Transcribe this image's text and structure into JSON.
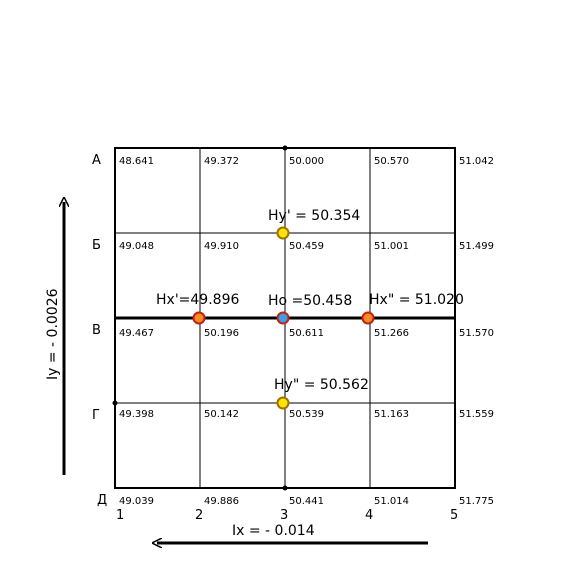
{
  "grid": {
    "row_labels": [
      "А",
      "Б",
      "В",
      "Г",
      "Д"
    ],
    "column_labels": [
      "1",
      "2",
      "3",
      "4",
      "5"
    ],
    "values": [
      [
        "48.641",
        "49.372",
        "50.000",
        "50.570",
        "51.042"
      ],
      [
        "49.048",
        "49.910",
        "50.459",
        "51.001",
        "51.499"
      ],
      [
        "49.467",
        "50.196",
        "50.611",
        "51.266",
        "51.570"
      ],
      [
        "49.398",
        "50.142",
        "50.539",
        "51.163",
        "51.559"
      ],
      [
        "49.039",
        "49.886",
        "50.441",
        "51.014",
        "51.775"
      ]
    ]
  },
  "annotations": {
    "hy_prime": "Hy' = 50.354",
    "hx_prime": "Hx'=49.896",
    "h_center": "Ho =50.458",
    "hx_double": "Hx\" = 51.020",
    "hy_double": "Hy\" = 50.562"
  },
  "gradients": {
    "iy": "Iy = - 0.0026",
    "ix": "Ix = - 0.014"
  }
}
